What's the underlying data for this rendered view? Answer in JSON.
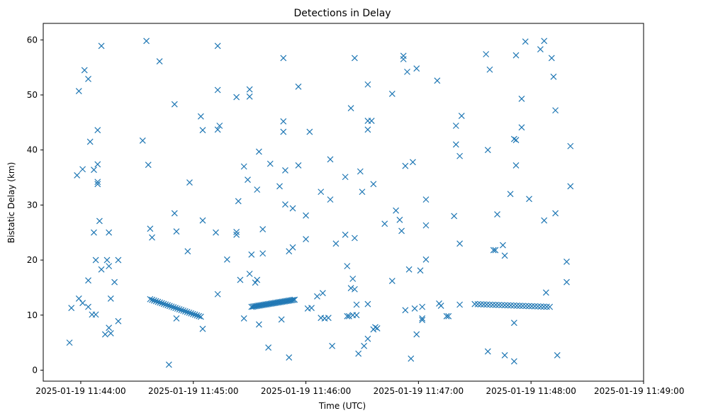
{
  "chart_data": {
    "type": "scatter",
    "title": "Detections in Delay",
    "xlabel": "Time (UTC)",
    "ylabel": "Bistatic Delay (km)",
    "marker": "x",
    "color": "#1f77b4",
    "grid": false,
    "xlim": [
      "2025-01-19 11:43:40",
      "2025-01-19 11:49:00"
    ],
    "ylim": [
      -2,
      63
    ],
    "x_ticks": [
      "2025-01-19 11:44:00",
      "2025-01-19 11:45:00",
      "2025-01-19 11:46:00",
      "2025-01-19 11:47:00",
      "2025-01-19 11:48:00",
      "2025-01-19 11:49:00"
    ],
    "y_ticks": [
      0,
      10,
      20,
      30,
      40,
      50,
      60
    ],
    "points": [
      [
        "2025-01-19 11:43:54",
        5
      ],
      [
        "2025-01-19 11:43:55",
        11.3
      ],
      [
        "2025-01-19 11:43:58",
        35.4
      ],
      [
        "2025-01-19 11:43:59",
        50.7
      ],
      [
        "2025-01-19 11:43:59",
        13
      ],
      [
        "2025-01-19 11:44:01",
        36.5
      ],
      [
        "2025-01-19 11:44:01",
        12.2
      ],
      [
        "2025-01-19 11:44:02",
        54.5
      ],
      [
        "2025-01-19 11:44:04",
        52.9
      ],
      [
        "2025-01-19 11:44:04",
        16.3
      ],
      [
        "2025-01-19 11:44:04",
        11.5
      ],
      [
        "2025-01-19 11:44:05",
        41.5
      ],
      [
        "2025-01-19 11:44:06",
        10.1
      ],
      [
        "2025-01-19 11:44:07",
        36.4
      ],
      [
        "2025-01-19 11:44:07",
        25
      ],
      [
        "2025-01-19 11:44:08",
        20
      ],
      [
        "2025-01-19 11:44:08",
        10.1
      ],
      [
        "2025-01-19 11:44:09",
        43.6
      ],
      [
        "2025-01-19 11:44:09",
        37.4
      ],
      [
        "2025-01-19 11:44:09",
        34.2
      ],
      [
        "2025-01-19 11:44:09",
        33.8
      ],
      [
        "2025-01-19 11:44:10",
        27.1
      ],
      [
        "2025-01-19 11:44:11",
        58.9
      ],
      [
        "2025-01-19 11:44:11",
        18.3
      ],
      [
        "2025-01-19 11:44:13",
        6.5
      ],
      [
        "2025-01-19 11:44:14",
        20
      ],
      [
        "2025-01-19 11:44:15",
        7.7
      ],
      [
        "2025-01-19 11:44:15",
        25
      ],
      [
        "2025-01-19 11:44:15",
        18.9
      ],
      [
        "2025-01-19 11:44:16",
        6.7
      ],
      [
        "2025-01-19 11:44:16",
        13
      ],
      [
        "2025-01-19 11:44:18",
        16
      ],
      [
        "2025-01-19 11:44:20",
        8.9
      ],
      [
        "2025-01-19 11:44:20",
        20
      ],
      [
        "2025-01-19 11:44:33",
        41.7
      ],
      [
        "2025-01-19 11:44:35",
        59.8
      ],
      [
        "2025-01-19 11:44:36",
        37.3
      ],
      [
        "2025-01-19 11:44:37",
        25.7
      ],
      [
        "2025-01-19 11:44:38",
        24.1
      ],
      [
        "2025-01-19 11:44:42",
        56.1
      ],
      [
        "2025-01-19 11:44:47",
        1
      ],
      [
        "2025-01-19 11:44:50",
        48.3
      ],
      [
        "2025-01-19 11:44:50",
        28.5
      ],
      [
        "2025-01-19 11:44:51",
        25.2
      ],
      [
        "2025-01-19 11:44:51",
        9.4
      ],
      [
        "2025-01-19 11:44:57",
        21.6
      ],
      [
        "2025-01-19 11:44:58",
        34.1
      ],
      [
        "2025-01-19 11:45:04",
        46.1
      ],
      [
        "2025-01-19 11:45:05",
        43.6
      ],
      [
        "2025-01-19 11:45:05",
        27.2
      ],
      [
        "2025-01-19 11:45:05",
        7.5
      ],
      [
        "2025-01-19 11:45:12",
        25
      ],
      [
        "2025-01-19 11:45:13",
        50.9
      ],
      [
        "2025-01-19 11:45:13",
        58.9
      ],
      [
        "2025-01-19 11:45:13",
        43.7
      ],
      [
        "2025-01-19 11:45:14",
        44.4
      ],
      [
        "2025-01-19 11:45:13",
        13.8
      ],
      [
        "2025-01-19 11:45:18",
        20.1
      ],
      [
        "2025-01-19 11:45:23",
        49.6
      ],
      [
        "2025-01-19 11:45:23",
        25.1
      ],
      [
        "2025-01-19 11:45:23",
        24.6
      ],
      [
        "2025-01-19 11:45:24",
        30.7
      ],
      [
        "2025-01-19 11:45:25",
        16.4
      ],
      [
        "2025-01-19 11:45:27",
        37
      ],
      [
        "2025-01-19 11:45:27",
        9.4
      ],
      [
        "2025-01-19 11:45:29",
        34.6
      ],
      [
        "2025-01-19 11:45:30",
        51
      ],
      [
        "2025-01-19 11:45:30",
        49.7
      ],
      [
        "2025-01-19 11:45:30",
        17.5
      ],
      [
        "2025-01-19 11:45:31",
        21
      ],
      [
        "2025-01-19 11:45:33",
        15.9
      ],
      [
        "2025-01-19 11:45:34",
        32.8
      ],
      [
        "2025-01-19 11:45:34",
        16.4
      ],
      [
        "2025-01-19 11:45:35",
        39.7
      ],
      [
        "2025-01-19 11:45:35",
        8.3
      ],
      [
        "2025-01-19 11:45:37",
        25.6
      ],
      [
        "2025-01-19 11:45:37",
        21.2
      ],
      [
        "2025-01-19 11:45:41",
        37.5
      ],
      [
        "2025-01-19 11:45:40",
        4.1
      ],
      [
        "2025-01-19 11:45:46",
        33.4
      ],
      [
        "2025-01-19 11:45:47",
        9.2
      ],
      [
        "2025-01-19 11:45:48",
        45.2
      ],
      [
        "2025-01-19 11:45:48",
        43.3
      ],
      [
        "2025-01-19 11:45:48",
        56.7
      ],
      [
        "2025-01-19 11:45:49",
        36.3
      ],
      [
        "2025-01-19 11:45:49",
        30.1
      ],
      [
        "2025-01-19 11:45:51",
        21.6
      ],
      [
        "2025-01-19 11:45:51",
        2.3
      ],
      [
        "2025-01-19 11:45:53",
        29.4
      ],
      [
        "2025-01-19 11:45:53",
        22.3
      ],
      [
        "2025-01-19 11:45:56",
        51.5
      ],
      [
        "2025-01-19 11:45:56",
        37.2
      ],
      [
        "2025-01-19 11:46:00",
        28.1
      ],
      [
        "2025-01-19 11:46:00",
        23.8
      ],
      [
        "2025-01-19 11:46:01",
        11.2
      ],
      [
        "2025-01-19 11:46:02",
        43.3
      ],
      [
        "2025-01-19 11:46:03",
        11.3
      ],
      [
        "2025-01-19 11:46:06",
        13.4
      ],
      [
        "2025-01-19 11:46:08",
        32.4
      ],
      [
        "2025-01-19 11:46:08",
        9.5
      ],
      [
        "2025-01-19 11:46:09",
        14
      ],
      [
        "2025-01-19 11:46:10",
        9.4
      ],
      [
        "2025-01-19 11:46:12",
        9.5
      ],
      [
        "2025-01-19 11:46:13",
        38.3
      ],
      [
        "2025-01-19 11:46:13",
        31
      ],
      [
        "2025-01-19 11:46:14",
        4.4
      ],
      [
        "2025-01-19 11:46:16",
        23
      ],
      [
        "2025-01-19 11:46:21",
        35.1
      ],
      [
        "2025-01-19 11:46:21",
        24.6
      ],
      [
        "2025-01-19 11:46:22",
        18.9
      ],
      [
        "2025-01-19 11:46:22",
        9.8
      ],
      [
        "2025-01-19 11:46:23",
        9.8
      ],
      [
        "2025-01-19 11:46:24",
        47.6
      ],
      [
        "2025-01-19 11:46:24",
        14.9
      ],
      [
        "2025-01-19 11:46:25",
        16.6
      ],
      [
        "2025-01-19 11:46:25",
        10
      ],
      [
        "2025-01-19 11:46:26",
        56.7
      ],
      [
        "2025-01-19 11:46:26",
        24
      ],
      [
        "2025-01-19 11:46:26",
        14.7
      ],
      [
        "2025-01-19 11:46:27",
        11.9
      ],
      [
        "2025-01-19 11:46:27",
        10
      ],
      [
        "2025-01-19 11:46:28",
        3
      ],
      [
        "2025-01-19 11:46:29",
        36.1
      ],
      [
        "2025-01-19 11:46:30",
        32.4
      ],
      [
        "2025-01-19 11:46:31",
        4.4
      ],
      [
        "2025-01-19 11:46:33",
        5.7
      ],
      [
        "2025-01-19 11:46:33",
        12
      ],
      [
        "2025-01-19 11:46:33",
        51.9
      ],
      [
        "2025-01-19 11:46:33",
        45.3
      ],
      [
        "2025-01-19 11:46:33",
        43.7
      ],
      [
        "2025-01-19 11:46:35",
        45.3
      ],
      [
        "2025-01-19 11:46:36",
        33.8
      ],
      [
        "2025-01-19 11:46:36",
        7.4
      ],
      [
        "2025-01-19 11:46:37",
        7.8
      ],
      [
        "2025-01-19 11:46:38",
        7.6
      ],
      [
        "2025-01-19 11:46:42",
        26.6
      ],
      [
        "2025-01-19 11:46:46",
        16.2
      ],
      [
        "2025-01-19 11:46:46",
        50.2
      ],
      [
        "2025-01-19 11:46:48",
        29
      ],
      [
        "2025-01-19 11:46:50",
        27.3
      ],
      [
        "2025-01-19 11:46:51",
        25.3
      ],
      [
        "2025-01-19 11:46:52",
        56.5
      ],
      [
        "2025-01-19 11:46:52",
        57.1
      ],
      [
        "2025-01-19 11:46:53",
        37.1
      ],
      [
        "2025-01-19 11:46:53",
        10.9
      ],
      [
        "2025-01-19 11:46:54",
        54.2
      ],
      [
        "2025-01-19 11:46:55",
        18.3
      ],
      [
        "2025-01-19 11:46:56",
        2.1
      ],
      [
        "2025-01-19 11:46:57",
        37.8
      ],
      [
        "2025-01-19 11:46:58",
        11.2
      ],
      [
        "2025-01-19 11:46:59",
        6.5
      ],
      [
        "2025-01-19 11:46:59",
        54.8
      ],
      [
        "2025-01-19 11:47:01",
        18.1
      ],
      [
        "2025-01-19 11:47:02",
        9.1
      ],
      [
        "2025-01-19 11:47:02",
        9.4
      ],
      [
        "2025-01-19 11:47:02",
        11.5
      ],
      [
        "2025-01-19 11:47:04",
        31
      ],
      [
        "2025-01-19 11:47:04",
        26.3
      ],
      [
        "2025-01-19 11:47:04",
        20.1
      ],
      [
        "2025-01-19 11:47:10",
        52.6
      ],
      [
        "2025-01-19 11:47:11",
        12.1
      ],
      [
        "2025-01-19 11:47:12",
        11.7
      ],
      [
        "2025-01-19 11:47:15",
        9.8
      ],
      [
        "2025-01-19 11:47:16",
        9.8
      ],
      [
        "2025-01-19 11:47:19",
        28
      ],
      [
        "2025-01-19 11:47:20",
        44.4
      ],
      [
        "2025-01-19 11:47:20",
        41
      ],
      [
        "2025-01-19 11:47:22",
        38.9
      ],
      [
        "2025-01-19 11:47:22",
        23
      ],
      [
        "2025-01-19 11:47:22",
        11.9
      ],
      [
        "2025-01-19 11:47:23",
        46.2
      ],
      [
        "2025-01-19 11:47:36",
        57.4
      ],
      [
        "2025-01-19 11:47:37",
        40
      ],
      [
        "2025-01-19 11:47:37",
        3.4
      ],
      [
        "2025-01-19 11:47:38",
        54.6
      ],
      [
        "2025-01-19 11:47:40",
        21.8
      ],
      [
        "2025-01-19 11:47:41",
        21.8
      ],
      [
        "2025-01-19 11:47:42",
        28.3
      ],
      [
        "2025-01-19 11:47:45",
        22.7
      ],
      [
        "2025-01-19 11:47:46",
        20.8
      ],
      [
        "2025-01-19 11:47:46",
        2.7
      ],
      [
        "2025-01-19 11:47:49",
        32
      ],
      [
        "2025-01-19 11:47:51",
        8.6
      ],
      [
        "2025-01-19 11:47:51",
        1.6
      ],
      [
        "2025-01-19 11:47:51",
        42
      ],
      [
        "2025-01-19 11:47:52",
        41.8
      ],
      [
        "2025-01-19 11:47:52",
        57.2
      ],
      [
        "2025-01-19 11:47:52",
        37.2
      ],
      [
        "2025-01-19 11:47:55",
        44.1
      ],
      [
        "2025-01-19 11:47:55",
        49.3
      ],
      [
        "2025-01-19 11:47:57",
        59.7
      ],
      [
        "2025-01-19 11:47:59",
        31.1
      ],
      [
        "2025-01-19 11:48:05",
        58.3
      ],
      [
        "2025-01-19 11:48:07",
        59.8
      ],
      [
        "2025-01-19 11:48:07",
        27.2
      ],
      [
        "2025-01-19 11:48:08",
        14.1
      ],
      [
        "2025-01-19 11:48:11",
        56.7
      ],
      [
        "2025-01-19 11:48:12",
        53.3
      ],
      [
        "2025-01-19 11:48:13",
        47.2
      ],
      [
        "2025-01-19 11:48:13",
        28.5
      ],
      [
        "2025-01-19 11:48:14",
        2.7
      ],
      [
        "2025-01-19 11:48:19",
        19.7
      ],
      [
        "2025-01-19 11:48:19",
        16
      ],
      [
        "2025-01-19 11:48:21",
        40.7
      ],
      [
        "2025-01-19 11:48:21",
        33.4
      ]
    ],
    "clusters": [
      {
        "start": "2025-01-19 11:44:37",
        "end": "2025-01-19 11:45:04",
        "y_start": 12.9,
        "y_end": 9.7,
        "count": 27
      },
      {
        "start": "2025-01-19 11:45:31",
        "end": "2025-01-19 11:45:54",
        "y_start": 11.5,
        "y_end": 12.8,
        "count": 32
      },
      {
        "start": "2025-01-19 11:47:30",
        "end": "2025-01-19 11:48:10",
        "y_start": 12,
        "y_end": 11.5,
        "count": 26
      }
    ]
  }
}
